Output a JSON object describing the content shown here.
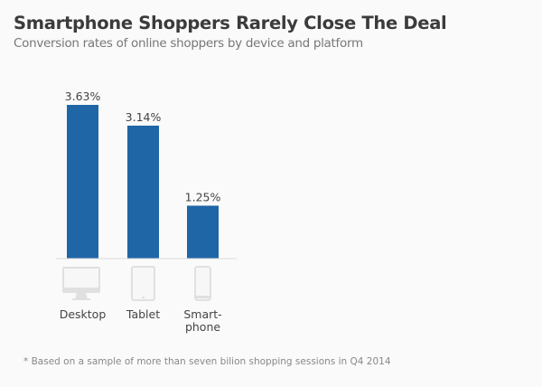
{
  "header": {
    "title": "Smartphone Shoppers Rarely Close The Deal",
    "subtitle": "Conversion rates of online shoppers by device and platform"
  },
  "footnote": "* Based on a sample of more than seven bilion shopping sessions in Q4 2014",
  "colors": {
    "bar": "#1f66a6",
    "axis": "#d9d9d9",
    "icon": "#e0e0e0"
  },
  "chart_data": {
    "type": "bar",
    "title": "Smartphone Shoppers Rarely Close The Deal",
    "subtitle": "Conversion rates of online shoppers by device and platform",
    "categories": [
      "Desktop",
      "Tablet",
      "Smartphone"
    ],
    "category_labels": [
      [
        "Desktop"
      ],
      [
        "Tablet"
      ],
      [
        "Smart-",
        "phone"
      ]
    ],
    "category_icons": [
      "desktop-icon",
      "tablet-icon",
      "smartphone-icon"
    ],
    "values": [
      3.63,
      3.14,
      1.25
    ],
    "value_labels": [
      "3.63%",
      "3.14%",
      "1.25%"
    ],
    "unit": "%",
    "xlabel": "",
    "ylabel": "",
    "ylim": [
      0,
      3.63
    ],
    "grid": false,
    "legend": "none"
  }
}
